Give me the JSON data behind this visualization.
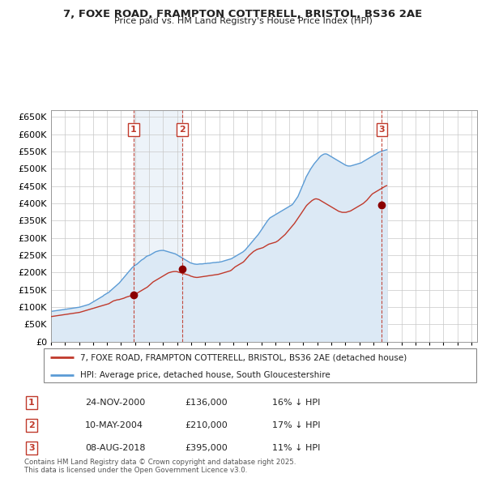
{
  "title": "7, FOXE ROAD, FRAMPTON COTTERELL, BRISTOL, BS36 2AE",
  "subtitle": "Price paid vs. HM Land Registry's House Price Index (HPI)",
  "ylim": [
    0,
    670000
  ],
  "yticks": [
    0,
    50000,
    100000,
    150000,
    200000,
    250000,
    300000,
    350000,
    400000,
    450000,
    500000,
    550000,
    600000,
    650000
  ],
  "ytick_labels": [
    "£0",
    "£50K",
    "£100K",
    "£150K",
    "£200K",
    "£250K",
    "£300K",
    "£350K",
    "£400K",
    "£450K",
    "£500K",
    "£550K",
    "£600K",
    "£650K"
  ],
  "sale_dates": [
    "2000-11-24",
    "2004-05-10",
    "2018-08-08"
  ],
  "sale_prices": [
    136000,
    210000,
    395000
  ],
  "sale_labels": [
    "1",
    "2",
    "3"
  ],
  "sale_info": [
    {
      "label": "1",
      "date": "24-NOV-2000",
      "price": "£136,000",
      "hpi": "16% ↓ HPI"
    },
    {
      "label": "2",
      "date": "10-MAY-2004",
      "price": "£210,000",
      "hpi": "17% ↓ HPI"
    },
    {
      "label": "3",
      "date": "08-AUG-2018",
      "price": "£395,000",
      "hpi": "11% ↓ HPI"
    }
  ],
  "hpi_line_color": "#5b9bd5",
  "hpi_fill_color": "#dce9f5",
  "sale_line_color": "#c0392b",
  "vline_color": "#c0392b",
  "label_box_color": "#c0392b",
  "legend_label_property": "7, FOXE ROAD, FRAMPTON COTTERELL, BRISTOL, BS36 2AE (detached house)",
  "legend_label_hpi": "HPI: Average price, detached house, South Gloucestershire",
  "footer": "Contains HM Land Registry data © Crown copyright and database right 2025.\nThis data is licensed under the Open Government Licence v3.0.",
  "bg_color": "#ffffff",
  "grid_color": "#c8c8c8",
  "hpi_monthly_values": [
    88000,
    88500,
    89000,
    89500,
    90000,
    90500,
    91000,
    91500,
    92000,
    92500,
    93000,
    93500,
    94000,
    94500,
    95000,
    95500,
    96000,
    96500,
    97000,
    97500,
    98000,
    98500,
    99000,
    99500,
    100000,
    101000,
    102000,
    103000,
    104000,
    105000,
    106000,
    107000,
    108000,
    110000,
    112000,
    114000,
    116000,
    118000,
    120000,
    122000,
    124000,
    126000,
    128000,
    130000,
    132000,
    135000,
    137000,
    139000,
    141000,
    143000,
    146000,
    149000,
    152000,
    155000,
    158000,
    161000,
    164000,
    167000,
    170000,
    174000,
    178000,
    182000,
    186000,
    190000,
    194000,
    198000,
    202000,
    206000,
    210000,
    214000,
    217000,
    220000,
    222000,
    224000,
    227000,
    230000,
    233000,
    236000,
    238000,
    240000,
    243000,
    246000,
    248000,
    249000,
    250000,
    252000,
    254000,
    256000,
    258000,
    260000,
    261000,
    262000,
    263000,
    263500,
    264000,
    264000,
    264000,
    263000,
    262000,
    261000,
    260000,
    259000,
    258000,
    257000,
    256000,
    255000,
    254000,
    252000,
    250000,
    248000,
    246000,
    244000,
    242000,
    240000,
    238000,
    236000,
    234000,
    232000,
    230000,
    228000,
    227000,
    226000,
    225000,
    224500,
    224000,
    224000,
    224500,
    225000,
    225000,
    225000,
    225500,
    226000,
    226000,
    226500,
    227000,
    227000,
    227500,
    228000,
    228500,
    229000,
    229000,
    229500,
    230000,
    230000,
    230500,
    231000,
    232000,
    233000,
    234000,
    235000,
    236000,
    237000,
    238000,
    239000,
    240000,
    242000,
    244000,
    246000,
    248000,
    250000,
    252000,
    254000,
    256000,
    258000,
    260000,
    263000,
    266000,
    270000,
    274000,
    278000,
    282000,
    286000,
    290000,
    294000,
    298000,
    302000,
    306000,
    310000,
    315000,
    320000,
    325000,
    330000,
    335000,
    340000,
    345000,
    350000,
    354000,
    358000,
    360000,
    362000,
    364000,
    366000,
    368000,
    370000,
    372000,
    374000,
    376000,
    378000,
    380000,
    382000,
    384000,
    386000,
    388000,
    390000,
    392000,
    394000,
    396000,
    400000,
    405000,
    410000,
    415000,
    420000,
    428000,
    436000,
    444000,
    452000,
    460000,
    468000,
    476000,
    482000,
    488000,
    494000,
    500000,
    505000,
    510000,
    515000,
    519000,
    523000,
    527000,
    531000,
    535000,
    538000,
    540000,
    542000,
    543000,
    543000,
    542000,
    540000,
    538000,
    536000,
    534000,
    532000,
    530000,
    528000,
    526000,
    524000,
    522000,
    520000,
    518000,
    516000,
    514000,
    512000,
    510000,
    509000,
    508000,
    508000,
    508000,
    509000,
    510000,
    511000,
    512000,
    513000,
    514000,
    515000,
    516000,
    517000,
    519000,
    521000,
    523000,
    525000,
    527000,
    529000,
    531000,
    533000,
    535000,
    537000,
    539000,
    541000,
    543000,
    545000,
    547000,
    549000,
    550000,
    551000,
    552000,
    553000,
    554000,
    555000
  ],
  "prop_monthly_values": [
    73000,
    73500,
    74000,
    74500,
    75000,
    75500,
    76000,
    76500,
    77000,
    77500,
    78000,
    78500,
    79000,
    79500,
    80000,
    80500,
    81000,
    81500,
    82000,
    82500,
    83000,
    83500,
    84000,
    84500,
    85000,
    86000,
    87000,
    88000,
    89000,
    90000,
    91000,
    92000,
    93000,
    94000,
    95000,
    96000,
    97000,
    98000,
    99000,
    100000,
    101000,
    102000,
    103000,
    104000,
    105000,
    106000,
    107000,
    108000,
    109000,
    110000,
    112000,
    114000,
    116000,
    118000,
    119000,
    120000,
    121000,
    121500,
    122000,
    123000,
    124000,
    125000,
    126000,
    127500,
    129000,
    130000,
    131000,
    132000,
    133000,
    134000,
    135000,
    136000,
    138000,
    140000,
    142000,
    144000,
    146000,
    148000,
    150000,
    152000,
    154000,
    156000,
    158000,
    161000,
    164000,
    167000,
    170000,
    173000,
    175000,
    177000,
    179000,
    181000,
    183000,
    185000,
    187000,
    189000,
    191000,
    193000,
    195000,
    197000,
    199000,
    200000,
    201000,
    202000,
    202500,
    203000,
    203000,
    203000,
    202000,
    201000,
    200000,
    199000,
    198000,
    197000,
    196000,
    195000,
    194000,
    193000,
    192000,
    190000,
    189000,
    188000,
    187000,
    186500,
    186000,
    186000,
    186500,
    187000,
    187500,
    188000,
    188500,
    189000,
    189500,
    190000,
    190500,
    191000,
    191500,
    192000,
    192500,
    193000,
    193500,
    194000,
    194500,
    195000,
    196000,
    197000,
    198000,
    199000,
    200000,
    201000,
    202000,
    203000,
    204000,
    205000,
    207000,
    210000,
    213000,
    216000,
    218000,
    220000,
    222000,
    224000,
    226000,
    228000,
    230000,
    233000,
    237000,
    241000,
    245000,
    249000,
    252000,
    255000,
    258000,
    261000,
    263000,
    265000,
    267000,
    268000,
    269000,
    270000,
    271000,
    272000,
    274000,
    276000,
    278000,
    280000,
    282000,
    283000,
    284000,
    285000,
    286000,
    287000,
    288000,
    290000,
    292000,
    295000,
    298000,
    301000,
    304000,
    307000,
    310000,
    314000,
    318000,
    322000,
    326000,
    330000,
    334000,
    338000,
    342000,
    347000,
    352000,
    357000,
    362000,
    367000,
    372000,
    377000,
    382000,
    387000,
    392000,
    396000,
    399000,
    402000,
    405000,
    408000,
    410000,
    412000,
    413000,
    413000,
    412000,
    411000,
    409000,
    407000,
    405000,
    403000,
    401000,
    399000,
    397000,
    395000,
    393000,
    391000,
    389000,
    387000,
    385000,
    383000,
    381000,
    379000,
    377000,
    376000,
    375000,
    374000,
    374000,
    374000,
    374000,
    375000,
    376000,
    377000,
    378000,
    380000,
    382000,
    384000,
    386000,
    388000,
    390000,
    392000,
    394000,
    396000,
    398000,
    400000,
    403000,
    406000,
    409000,
    413000,
    417000,
    421000,
    425000,
    428000,
    430000,
    432000,
    434000,
    436000,
    438000,
    440000,
    442000,
    444000,
    446000,
    448000,
    450000,
    451000
  ],
  "start_year": 1995,
  "start_month": 1,
  "end_year": 2025,
  "end_month": 12
}
